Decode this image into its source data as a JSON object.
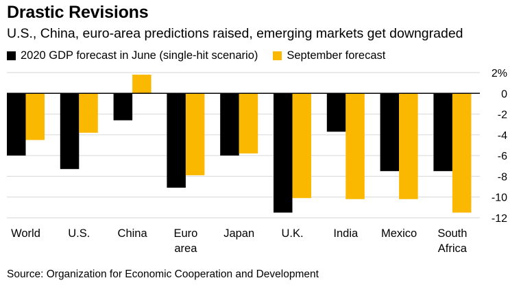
{
  "chart_data": {
    "type": "bar",
    "title": "Drastic Revisions",
    "subtitle": "U.S., China, euro-area predictions raised, emerging markets get downgraded",
    "categories": [
      [
        "World"
      ],
      [
        "U.S."
      ],
      [
        "China"
      ],
      [
        "Euro",
        "area"
      ],
      [
        "Japan"
      ],
      [
        "U.K."
      ],
      [
        "India"
      ],
      [
        "Mexico"
      ],
      [
        "South",
        "Africa"
      ]
    ],
    "series": [
      {
        "name": "2020 GDP forecast in June (single-hit scenario)",
        "color": "#000000",
        "values": [
          -6.0,
          -7.3,
          -2.6,
          -9.1,
          -6.0,
          -11.5,
          -3.7,
          -7.5,
          -7.5
        ]
      },
      {
        "name": "September forecast",
        "color": "#fbb800",
        "values": [
          -4.5,
          -3.8,
          1.8,
          -7.9,
          -5.8,
          -10.1,
          -10.2,
          -10.2,
          -11.5
        ]
      }
    ],
    "yticks": [
      "2%",
      "0",
      "-2",
      "-4",
      "-6",
      "-8",
      "-10",
      "-12"
    ],
    "ytick_values": [
      2,
      0,
      -2,
      -4,
      -6,
      -8,
      -10,
      -12
    ],
    "ylim": [
      -12,
      2
    ],
    "xlabel": "",
    "ylabel": "",
    "legend_position": "top-left",
    "source": "Source: Organization for Economic Cooperation and Development"
  }
}
